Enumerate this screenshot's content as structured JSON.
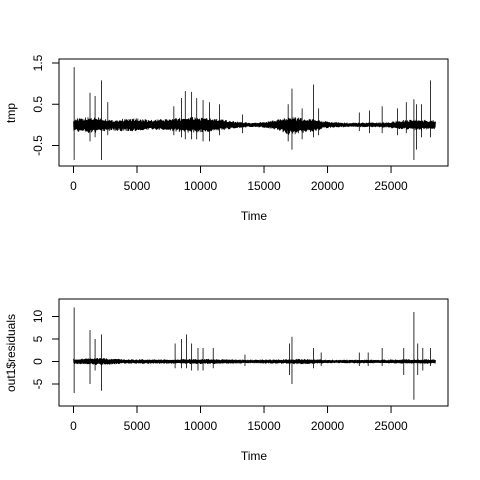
{
  "chart_data": [
    {
      "type": "line",
      "title": "",
      "xlabel": "Time",
      "ylabel": "tmp",
      "xlim": [
        0,
        28500
      ],
      "ylim": [
        -0.9,
        1.5
      ],
      "x_ticks": [
        0,
        5000,
        10000,
        15000,
        20000,
        25000
      ],
      "x_tick_labels": [
        "0",
        "5000",
        "10000",
        "15000",
        "20000",
        "25000"
      ],
      "y_ticks": [
        -0.5,
        0.5,
        1.5
      ],
      "y_tick_labels": [
        "-0.5",
        "0.5",
        "1.5"
      ],
      "grid": false,
      "baseline": 0,
      "envelope": {
        "x": [
          0,
          1000,
          2000,
          3000,
          4000,
          5000,
          6000,
          7000,
          8000,
          9000,
          10000,
          11000,
          12000,
          13000,
          14000,
          15000,
          16000,
          17000,
          18000,
          19000,
          20000,
          21000,
          22000,
          23000,
          24000,
          25000,
          26000,
          27000,
          28000,
          28500
        ],
        "upper": [
          0.15,
          0.18,
          0.2,
          0.12,
          0.15,
          0.16,
          0.12,
          0.14,
          0.16,
          0.2,
          0.18,
          0.16,
          0.12,
          0.08,
          0.05,
          0.07,
          0.12,
          0.22,
          0.16,
          0.14,
          0.08,
          0.06,
          0.05,
          0.06,
          0.06,
          0.08,
          0.12,
          0.14,
          0.12,
          0.12
        ],
        "lower": [
          -0.15,
          -0.2,
          -0.2,
          -0.14,
          -0.16,
          -0.16,
          -0.12,
          -0.14,
          -0.16,
          -0.2,
          -0.18,
          -0.16,
          -0.12,
          -0.08,
          -0.05,
          -0.07,
          -0.12,
          -0.25,
          -0.2,
          -0.16,
          -0.08,
          -0.06,
          -0.05,
          -0.06,
          -0.06,
          -0.08,
          -0.12,
          -0.14,
          -0.12,
          -0.12
        ]
      },
      "spikes": [
        {
          "x": 50,
          "high": 1.4,
          "low": -0.85
        },
        {
          "x": 1300,
          "high": 0.78,
          "low": -0.4
        },
        {
          "x": 1700,
          "high": 0.7,
          "low": -0.3
        },
        {
          "x": 2200,
          "high": 1.08,
          "low": -0.85
        },
        {
          "x": 2700,
          "high": 0.55,
          "low": -0.25
        },
        {
          "x": 7900,
          "high": 0.45,
          "low": -0.25
        },
        {
          "x": 8500,
          "high": 0.65,
          "low": -0.3
        },
        {
          "x": 8800,
          "high": 0.82,
          "low": -0.35
        },
        {
          "x": 9300,
          "high": 0.8,
          "low": -0.35
        },
        {
          "x": 9700,
          "high": 0.65,
          "low": -0.35
        },
        {
          "x": 10200,
          "high": 0.6,
          "low": -0.4
        },
        {
          "x": 10700,
          "high": 0.55,
          "low": -0.4
        },
        {
          "x": 11500,
          "high": 0.5,
          "low": -0.25
        },
        {
          "x": 13300,
          "high": 0.25,
          "low": -0.2
        },
        {
          "x": 16900,
          "high": 0.5,
          "low": -0.4
        },
        {
          "x": 17200,
          "high": 0.88,
          "low": -0.6
        },
        {
          "x": 18000,
          "high": 0.4,
          "low": -0.35
        },
        {
          "x": 18900,
          "high": 0.98,
          "low": -0.3
        },
        {
          "x": 19300,
          "high": 0.4,
          "low": -0.25
        },
        {
          "x": 22500,
          "high": 0.3,
          "low": -0.15
        },
        {
          "x": 23300,
          "high": 0.35,
          "low": -0.2
        },
        {
          "x": 24300,
          "high": 0.45,
          "low": -0.2
        },
        {
          "x": 25500,
          "high": 0.4,
          "low": -0.25
        },
        {
          "x": 26200,
          "high": 0.55,
          "low": -0.2
        },
        {
          "x": 26800,
          "high": 0.62,
          "low": -0.85
        },
        {
          "x": 27000,
          "high": 0.5,
          "low": -0.6
        },
        {
          "x": 27400,
          "high": 0.5,
          "low": -0.3
        },
        {
          "x": 28100,
          "high": 1.08,
          "low": -0.3
        }
      ]
    },
    {
      "type": "line",
      "title": "",
      "xlabel": "Time",
      "ylabel": "out1$residuals",
      "xlim": [
        0,
        28500
      ],
      "ylim": [
        -9,
        13
      ],
      "x_ticks": [
        0,
        5000,
        10000,
        15000,
        20000,
        25000
      ],
      "x_tick_labels": [
        "0",
        "5000",
        "10000",
        "15000",
        "20000",
        "25000"
      ],
      "y_ticks": [
        -5,
        0,
        5,
        10
      ],
      "y_tick_labels": [
        "-5",
        "0",
        "5",
        "10"
      ],
      "grid": false,
      "baseline": 0,
      "envelope": {
        "x": [
          0,
          2000,
          4000,
          6000,
          8000,
          10000,
          12000,
          14000,
          16000,
          18000,
          20000,
          22000,
          24000,
          26000,
          28000,
          28500
        ],
        "upper": [
          0.6,
          0.8,
          0.5,
          0.5,
          0.5,
          0.6,
          0.5,
          0.4,
          0.5,
          0.6,
          0.4,
          0.4,
          0.4,
          0.5,
          0.5,
          0.5
        ],
        "lower": [
          -0.6,
          -0.8,
          -0.5,
          -0.5,
          -0.5,
          -0.6,
          -0.5,
          -0.4,
          -0.5,
          -0.6,
          -0.4,
          -0.4,
          -0.4,
          -0.5,
          -0.5,
          -0.5
        ]
      },
      "spikes": [
        {
          "x": 50,
          "high": 12,
          "low": -7
        },
        {
          "x": 1300,
          "high": 7,
          "low": -5
        },
        {
          "x": 1700,
          "high": 5,
          "low": -2
        },
        {
          "x": 2200,
          "high": 6,
          "low": -6.5
        },
        {
          "x": 8000,
          "high": 4,
          "low": -1.5
        },
        {
          "x": 8500,
          "high": 5,
          "low": -1.5
        },
        {
          "x": 8900,
          "high": 6,
          "low": -1.5
        },
        {
          "x": 9300,
          "high": 4,
          "low": -2
        },
        {
          "x": 9800,
          "high": 3,
          "low": -2
        },
        {
          "x": 10200,
          "high": 3,
          "low": -2
        },
        {
          "x": 11000,
          "high": 3,
          "low": -1.5
        },
        {
          "x": 13500,
          "high": 1.5,
          "low": -1
        },
        {
          "x": 17000,
          "high": 4,
          "low": -3
        },
        {
          "x": 17200,
          "high": 5.5,
          "low": -5
        },
        {
          "x": 18900,
          "high": 3,
          "low": -1.5
        },
        {
          "x": 19500,
          "high": 2,
          "low": -1
        },
        {
          "x": 22500,
          "high": 2,
          "low": -1
        },
        {
          "x": 23200,
          "high": 2,
          "low": -1
        },
        {
          "x": 24300,
          "high": 3,
          "low": -1
        },
        {
          "x": 26000,
          "high": 3,
          "low": -3
        },
        {
          "x": 26800,
          "high": 11,
          "low": -8.5
        },
        {
          "x": 27100,
          "high": 4,
          "low": -3
        },
        {
          "x": 27500,
          "high": 3,
          "low": -2
        },
        {
          "x": 28100,
          "high": 3,
          "low": -1
        }
      ]
    }
  ]
}
